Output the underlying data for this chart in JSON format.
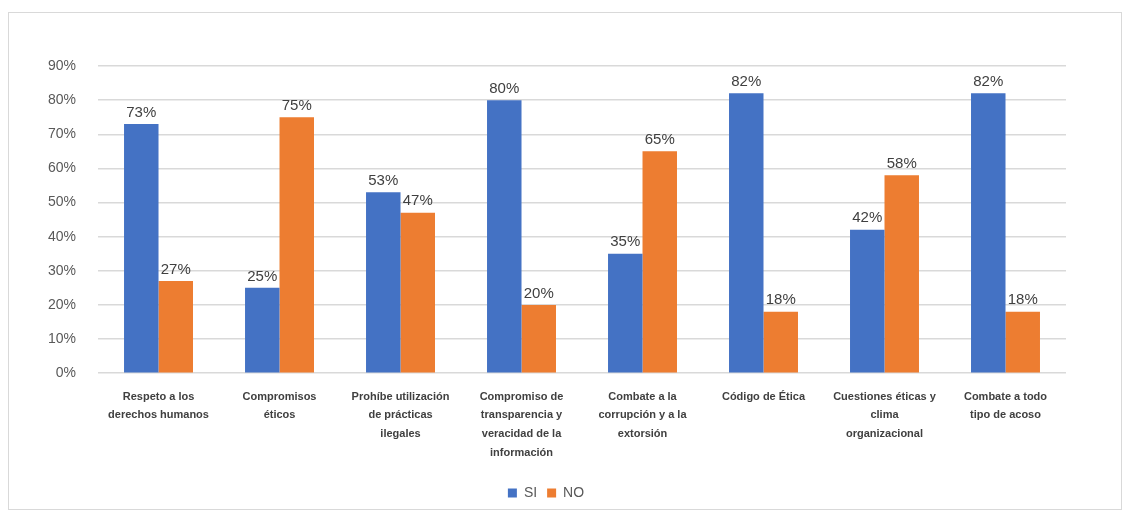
{
  "chart_data": {
    "type": "bar",
    "categories": [
      "Respeto a los derechos humanos",
      "Compromisos éticos",
      "Prohíbe utilización de prácticas ilegales",
      "Compromiso de transparencia y veracidad de la información",
      "Combate a la corrupción y a la extorsión",
      "Código de Ética",
      "Cuestiones éticas y clima organizacional",
      "Combate a todo tipo de acoso"
    ],
    "series": [
      {
        "name": "SI",
        "color": "#4472c4",
        "values": [
          73,
          25,
          53,
          80,
          35,
          82,
          42,
          82
        ],
        "value_labels": [
          "73%",
          "25%",
          "53%",
          "80%",
          "35%",
          "82%",
          "42%",
          "82%"
        ]
      },
      {
        "name": "NO",
        "color": "#ed7d31",
        "values": [
          27,
          75,
          47,
          20,
          65,
          18,
          58,
          18
        ],
        "value_labels": [
          "27%",
          "75%",
          "47%",
          "20%",
          "65%",
          "18%",
          "58%",
          "18%"
        ]
      }
    ],
    "ylim": [
      0,
      90
    ],
    "yticks": [
      {
        "value": 0,
        "label": "0%"
      },
      {
        "value": 10,
        "label": "10%"
      },
      {
        "value": 20,
        "label": "20%"
      },
      {
        "value": 30,
        "label": "30%"
      },
      {
        "value": 40,
        "label": "40%"
      },
      {
        "value": 50,
        "label": "50%"
      },
      {
        "value": 60,
        "label": "60%"
      },
      {
        "value": 70,
        "label": "70%"
      },
      {
        "value": 80,
        "label": "80%"
      },
      {
        "value": 90,
        "label": "90%"
      }
    ],
    "grid": "y",
    "legend": "bottom"
  }
}
